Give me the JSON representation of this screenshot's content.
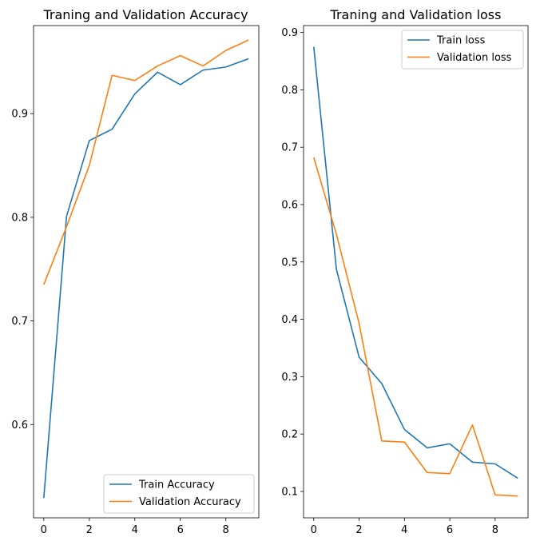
{
  "chart_data": [
    {
      "type": "line",
      "title": "Traning and Validation Accuracy",
      "xlabel": "",
      "ylabel": "",
      "x": [
        0,
        1,
        2,
        3,
        4,
        5,
        6,
        7,
        8,
        9
      ],
      "xlim": [
        -0.45,
        9.45
      ],
      "ylim": [
        0.51,
        0.985
      ],
      "xticks": [
        0,
        2,
        4,
        6,
        8
      ],
      "yticks": [
        0.6,
        0.7,
        0.8,
        0.9
      ],
      "grid": false,
      "legend_position": "bottom-right",
      "series": [
        {
          "name": "Train Accuracy",
          "color": "#1f77b4",
          "values": [
            0.529,
            0.801,
            0.874,
            0.885,
            0.919,
            0.94,
            0.928,
            0.942,
            0.945,
            0.953
          ]
        },
        {
          "name": "Validation Accuracy",
          "color": "#ff7f0e",
          "values": [
            0.735,
            0.791,
            0.85,
            0.937,
            0.932,
            0.946,
            0.956,
            0.946,
            0.961,
            0.971
          ]
        }
      ]
    },
    {
      "type": "line",
      "title": "Traning and Validation loss",
      "xlabel": "",
      "ylabel": "",
      "x": [
        0,
        1,
        2,
        3,
        4,
        5,
        6,
        7,
        8,
        9
      ],
      "xlim": [
        -0.45,
        9.45
      ],
      "ylim": [
        0.054,
        0.912
      ],
      "xticks": [
        0,
        2,
        4,
        6,
        8
      ],
      "yticks": [
        0.1,
        0.2,
        0.3,
        0.4,
        0.5,
        0.6,
        0.7,
        0.8,
        0.9
      ],
      "grid": false,
      "legend_position": "top-right",
      "series": [
        {
          "name": "Train loss",
          "color": "#1f77b4",
          "values": [
            0.875,
            0.487,
            0.334,
            0.288,
            0.208,
            0.176,
            0.183,
            0.151,
            0.148,
            0.123
          ]
        },
        {
          "name": "Validation loss",
          "color": "#ff7f0e",
          "values": [
            0.682,
            0.548,
            0.393,
            0.188,
            0.186,
            0.133,
            0.131,
            0.216,
            0.094,
            0.092
          ]
        }
      ]
    }
  ]
}
